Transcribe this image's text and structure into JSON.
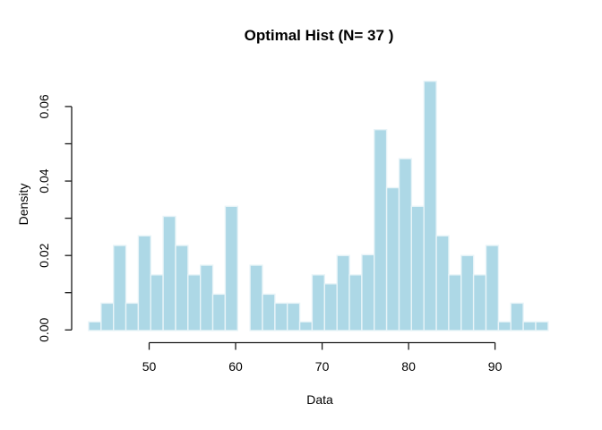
{
  "title": "Optimal Hist (N= 37 )",
  "chart_data": {
    "type": "bar",
    "subtype": "histogram",
    "title": "Optimal Hist (N= 37 )",
    "xlabel": "Data",
    "ylabel": "Density",
    "bin_start": 43.0,
    "bin_width": 1.436,
    "densities": [
      0.0022,
      0.0072,
      0.0227,
      0.0072,
      0.0253,
      0.0148,
      0.0305,
      0.0227,
      0.0148,
      0.0174,
      0.0096,
      0.0332,
      0,
      0.0174,
      0.0096,
      0.0072,
      0.0072,
      0.0022,
      0.0148,
      0.0124,
      0.02,
      0.0148,
      0.0202,
      0.0538,
      0.0382,
      0.046,
      0.0332,
      0.0668,
      0.0253,
      0.0148,
      0.02,
      0.0148,
      0.0227,
      0.0022,
      0.0072,
      0.0022,
      0.0022
    ],
    "x_ticks": [
      "50",
      "60",
      "70",
      "80",
      "90"
    ],
    "x_tick_values": [
      50,
      60,
      70,
      80,
      90
    ],
    "y_tick_values": [
      0,
      0.01,
      0.02,
      0.03,
      0.04,
      0.05,
      0.06
    ],
    "y_labeled_ticks": [
      0,
      0.02,
      0.04,
      0.06
    ],
    "y_tick_labels": [
      "0.00",
      "0.02",
      "0.04",
      "0.06"
    ],
    "xlim": [
      43.0,
      96.2
    ],
    "ylim": [
      0,
      0.06
    ],
    "grid": false,
    "legend": null,
    "bar_fill": "#ADD8E6",
    "bar_border": "#E8F4F8",
    "axis_color": "#1A1A1A"
  }
}
